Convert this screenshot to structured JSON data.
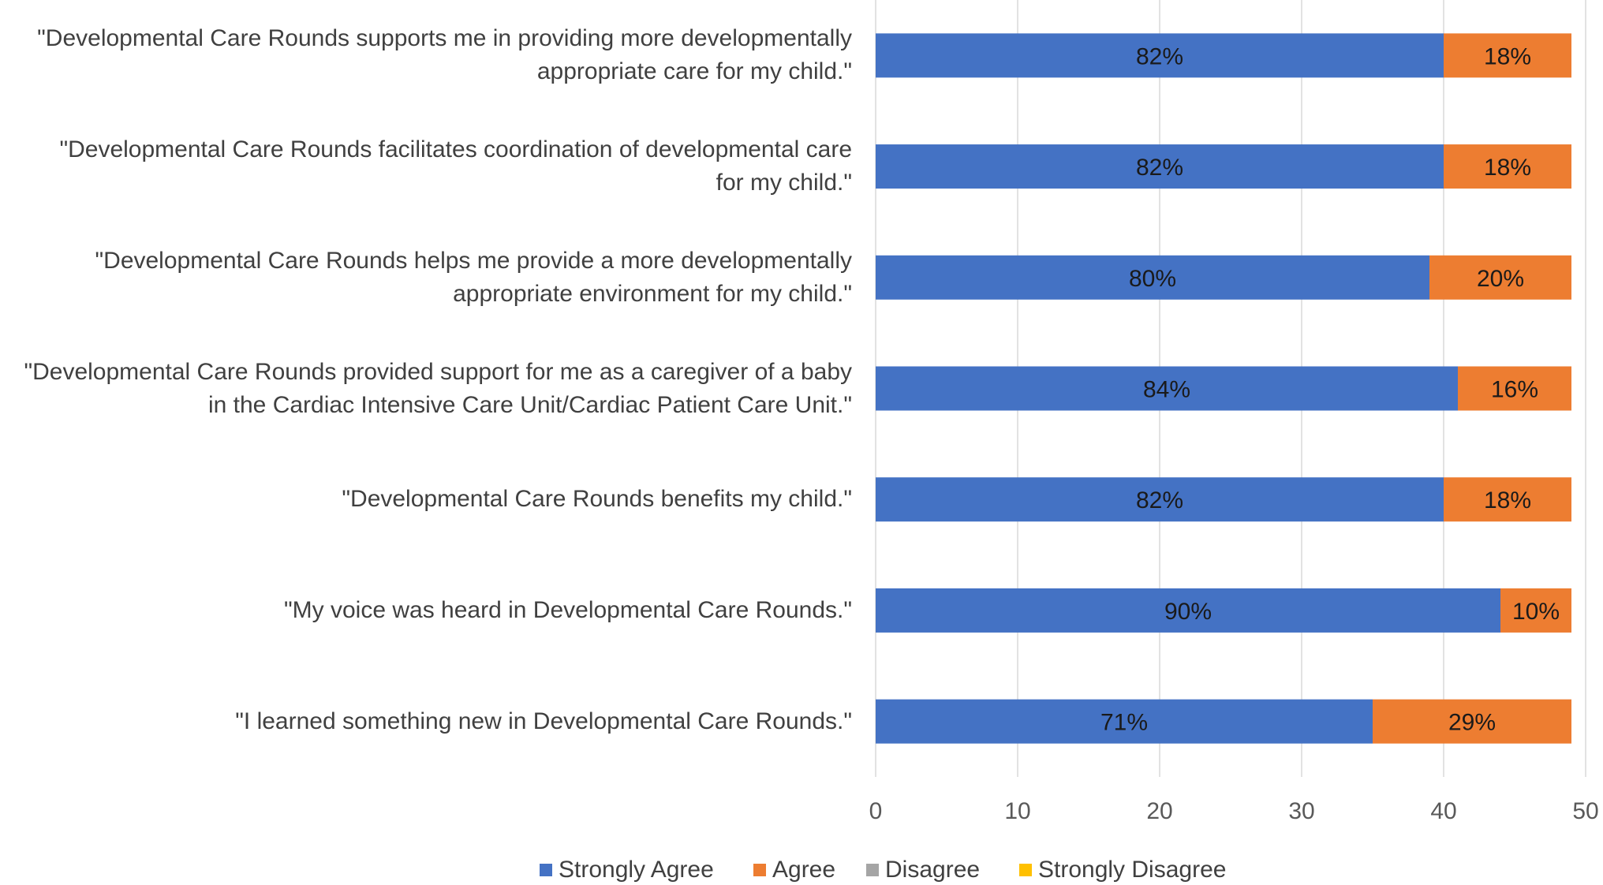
{
  "chart_data": {
    "type": "bar",
    "orientation": "horizontal",
    "stacked": true,
    "title": "",
    "xlabel": "",
    "ylabel": "",
    "xlim": [
      0,
      50
    ],
    "xticks": [
      "0",
      "10",
      "20",
      "30",
      "40",
      "50"
    ],
    "grid": true,
    "legend_position": "bottom",
    "categories": [
      [
        "\"Developmental Care Rounds supports me in providing more developmentally",
        "appropriate care for my child.\""
      ],
      [
        "\"Developmental Care Rounds facilitates coordination of developmental care",
        "for my child.\""
      ],
      [
        "\"Developmental Care Rounds helps me provide a more developmentally",
        "appropriate environment for my child.\""
      ],
      [
        "\"Developmental Care Rounds provided support for me as a caregiver of a baby",
        "in the Cardiac Intensive Care Unit/Cardiac Patient Care Unit.\""
      ],
      [
        "\"Developmental Care Rounds benefits my child.\""
      ],
      [
        "\"My voice was heard in Developmental Care Rounds.\""
      ],
      [
        "\"I learned something new in Developmental Care Rounds.\""
      ]
    ],
    "series": [
      {
        "name": "Strongly Agree",
        "color": "#4472C4",
        "values": [
          40,
          40,
          39,
          41,
          40,
          44,
          35
        ],
        "labels": [
          "82%",
          "82%",
          "80%",
          "84%",
          "82%",
          "90%",
          "71%"
        ]
      },
      {
        "name": "Agree",
        "color": "#ED7D31",
        "values": [
          9,
          9,
          10,
          8,
          9,
          5,
          14
        ],
        "labels": [
          "18%",
          "18%",
          "20%",
          "16%",
          "18%",
          "10%",
          "29%"
        ]
      },
      {
        "name": "Disagree",
        "color": "#A5A5A5",
        "values": [
          0,
          0,
          0,
          0,
          0,
          0,
          0
        ],
        "labels": [
          "",
          "",
          "",
          "",
          "",
          "",
          ""
        ]
      },
      {
        "name": "Strongly Disagree",
        "color": "#FFC000",
        "values": [
          0,
          0,
          0,
          0,
          0,
          0,
          0
        ],
        "labels": [
          "",
          "",
          "",
          "",
          "",
          "",
          ""
        ]
      }
    ]
  }
}
